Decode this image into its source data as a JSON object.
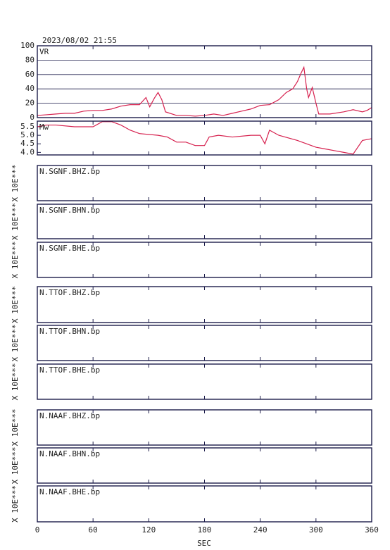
{
  "title": "2023/08/02 21:55",
  "x_axis": {
    "label": "SEC",
    "xlim": [
      0,
      360
    ],
    "xticks": [
      0,
      60,
      120,
      180,
      240,
      300,
      360
    ]
  },
  "chart_data": [
    {
      "type": "line",
      "label": "VR",
      "color": "#d6204e",
      "grid": true,
      "ylim": [
        0,
        100
      ],
      "yticks": [
        0,
        20,
        40,
        60,
        80,
        100
      ],
      "x": [
        0,
        10,
        20,
        30,
        40,
        50,
        60,
        70,
        80,
        90,
        100,
        110,
        117,
        121,
        126,
        130,
        134,
        138,
        150,
        160,
        170,
        180,
        190,
        200,
        210,
        220,
        230,
        240,
        250,
        260,
        268,
        275,
        280,
        284,
        287,
        290,
        292,
        296,
        300,
        303,
        315,
        330,
        340,
        350,
        355,
        360
      ],
      "values": [
        3,
        4,
        5,
        6,
        6,
        9,
        10,
        10,
        12,
        16,
        18,
        18,
        28,
        15,
        27,
        35,
        25,
        8,
        3,
        3,
        2,
        3,
        5,
        3,
        6,
        9,
        12,
        17,
        18,
        25,
        35,
        40,
        50,
        62,
        70,
        40,
        28,
        42,
        20,
        5,
        5,
        8,
        11,
        8,
        10,
        14
      ]
    },
    {
      "type": "line",
      "label": "Mw",
      "color": "#d6204e",
      "grid": false,
      "ylim": [
        3.85,
        5.83
      ],
      "yticks": [
        {
          "value": 4,
          "label": "4.0"
        },
        4.5,
        {
          "value": 5,
          "label": "5.0"
        },
        5.5
      ],
      "x": [
        0,
        10,
        20,
        40,
        60,
        70,
        80,
        90,
        100,
        110,
        130,
        140,
        150,
        160,
        170,
        180,
        185,
        195,
        210,
        230,
        240,
        245,
        250,
        260,
        280,
        300,
        310,
        320,
        330,
        340,
        350,
        360
      ],
      "values": [
        5.5,
        5.6,
        5.6,
        5.5,
        5.5,
        5.8,
        5.8,
        5.6,
        5.3,
        5.1,
        5.0,
        4.9,
        4.6,
        4.6,
        4.4,
        4.4,
        4.9,
        5.0,
        4.9,
        5.0,
        5.0,
        4.5,
        5.3,
        5.0,
        4.7,
        4.3,
        4.2,
        4.1,
        4.0,
        3.9,
        4.7,
        4.8
      ]
    }
  ],
  "traces": [
    {
      "label": "N.SGNF.BHZ.bp",
      "ylabel": "X 10E***"
    },
    {
      "label": "N.SGNF.BHN.bp",
      "ylabel": "X 10E***"
    },
    {
      "label": "N.SGNF.BHE.bp",
      "ylabel": "X 10E***"
    },
    {
      "label": "N.TTOF.BHZ.bp",
      "ylabel": "X 10E***"
    },
    {
      "label": "N.TTOF.BHN.bp",
      "ylabel": "X 10E***"
    },
    {
      "label": "N.TTOF.BHE.bp",
      "ylabel": "X 10E***"
    },
    {
      "label": "N.NAAF.BHZ.bp",
      "ylabel": "X 10E***"
    },
    {
      "label": "N.NAAF.BHN.bp",
      "ylabel": "X 10E***"
    },
    {
      "label": "N.NAAF.BHE.bp",
      "ylabel": "X 10E***"
    }
  ]
}
